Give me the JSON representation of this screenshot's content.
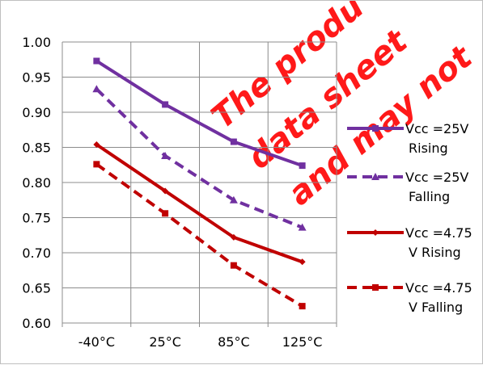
{
  "chart_data": {
    "type": "line",
    "categories": [
      "-40°C",
      "25°C",
      "85°C",
      "125°C"
    ],
    "ylim": [
      0.6,
      1.0
    ],
    "yticks": [
      "1.00",
      "0.95",
      "0.90",
      "0.85",
      "0.80",
      "0.75",
      "0.70",
      "0.65",
      "0.60"
    ],
    "grid": true,
    "legend_position": "right",
    "series": [
      {
        "name_lines": [
          "Vcc =25V",
          "Rising"
        ],
        "values": [
          0.973,
          0.911,
          0.858,
          0.824
        ],
        "color": "#7030a0",
        "dash": false,
        "marker": "square"
      },
      {
        "name_lines": [
          "Vcc =25V",
          "Falling"
        ],
        "values": [
          0.933,
          0.838,
          0.775,
          0.736
        ],
        "color": "#7030a0",
        "dash": true,
        "marker": "triangle"
      },
      {
        "name_lines": [
          "Vcc =4.75",
          "V Rising"
        ],
        "values": [
          0.854,
          0.788,
          0.722,
          0.687
        ],
        "color": "#c00000",
        "dash": false,
        "marker": "diamond"
      },
      {
        "name_lines": [
          "Vcc =4.75",
          "V Falling"
        ],
        "values": [
          0.826,
          0.756,
          0.682,
          0.624
        ],
        "color": "#c00000",
        "dash": true,
        "marker": "square"
      }
    ]
  },
  "watermark": {
    "lines": [
      "The produ",
      "data sheet",
      "and may not"
    ],
    "color": "#ff0000"
  }
}
